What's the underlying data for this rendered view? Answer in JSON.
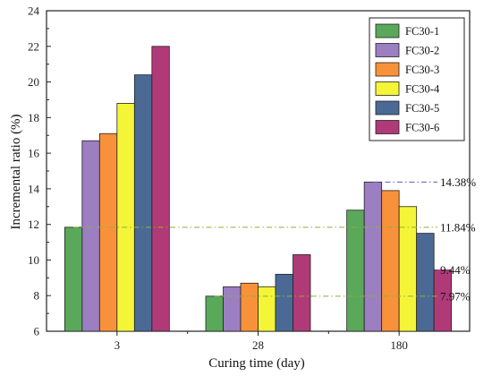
{
  "chart_data": {
    "type": "bar",
    "xlabel": "Curing time (day)",
    "ylabel": "Incremental ratio (%)",
    "ylim": [
      6,
      24
    ],
    "yticks": [
      6,
      8,
      10,
      12,
      14,
      16,
      18,
      20,
      22,
      24
    ],
    "categories": [
      "3",
      "28",
      "180"
    ],
    "legend_position": "top-right",
    "series": [
      {
        "name": "FC30-1",
        "color": "#5aa85a",
        "values": [
          11.84,
          7.97,
          12.8
        ]
      },
      {
        "name": "FC30-2",
        "color": "#9b7fc1",
        "values": [
          16.7,
          8.5,
          14.38
        ]
      },
      {
        "name": "FC30-3",
        "color": "#f7923a",
        "values": [
          17.1,
          8.7,
          13.9
        ]
      },
      {
        "name": "FC30-4",
        "color": "#f5f537",
        "values": [
          18.8,
          8.5,
          13.0
        ]
      },
      {
        "name": "FC30-5",
        "color": "#4a6a95",
        "values": [
          20.4,
          9.2,
          11.5
        ]
      },
      {
        "name": "FC30-6",
        "color": "#b03a77",
        "values": [
          22.0,
          10.3,
          9.44
        ]
      }
    ],
    "annotations": [
      {
        "label": "14.38%",
        "y": 14.38,
        "color": "#5b5bd1"
      },
      {
        "label": "11.84%",
        "y": 11.84,
        "color": "#8fb03a"
      },
      {
        "label": "9.44%",
        "y": 9.44,
        "color": "#c03a8a"
      },
      {
        "label": "7.97%",
        "y": 7.97,
        "color": "#8fb03a"
      }
    ]
  }
}
